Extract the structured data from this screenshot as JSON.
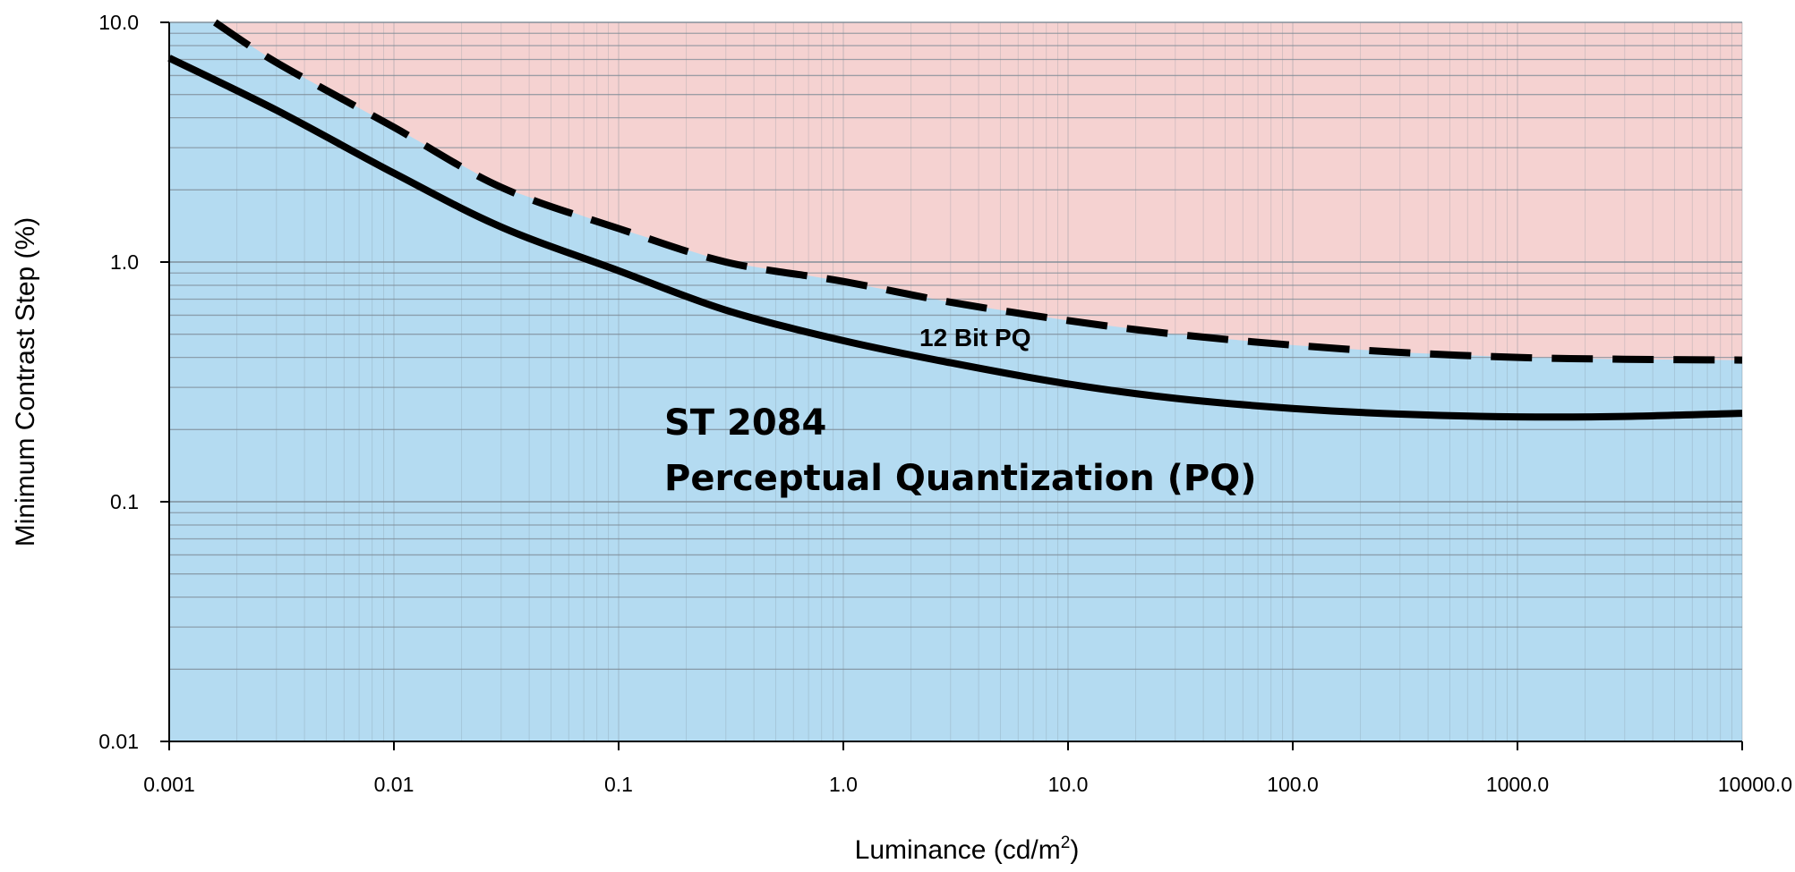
{
  "chart_data": {
    "type": "line",
    "xlabel": "Luminance (cd/m",
    "xlabel_sup": "2",
    "xlabel_close": ")",
    "ylabel": "Minimum Contrast Step (%)",
    "xscale": "log",
    "yscale": "log",
    "xlim": [
      0.001,
      10000
    ],
    "ylim": [
      0.01,
      10
    ],
    "grid": true,
    "x_ticks": [
      {
        "value": 0.001,
        "label": "0.001"
      },
      {
        "value": 0.01,
        "label": "0.01"
      },
      {
        "value": 0.1,
        "label": "0.1"
      },
      {
        "value": 1,
        "label": "1.0"
      },
      {
        "value": 10,
        "label": "10.0"
      },
      {
        "value": 100,
        "label": "100.0"
      },
      {
        "value": 1000,
        "label": "1000.0"
      },
      {
        "value": 10000,
        "label": "10000.0"
      }
    ],
    "y_ticks": [
      {
        "value": 0.01,
        "label": "0.01"
      },
      {
        "value": 0.1,
        "label": "0.1"
      },
      {
        "value": 1,
        "label": "1.0"
      },
      {
        "value": 10,
        "label": "10.0"
      }
    ],
    "region_colors": {
      "above": "#f5d2d1",
      "below": "#b4dbf1",
      "grid": "#7d8b96"
    },
    "series": [
      {
        "name": "12 Bit PQ",
        "style": "dashed",
        "color": "#000000",
        "points": [
          [
            0.0016,
            10.0
          ],
          [
            0.003,
            6.8
          ],
          [
            0.01,
            3.65
          ],
          [
            0.03,
            2.05
          ],
          [
            0.1,
            1.38
          ],
          [
            0.3,
            1.0
          ],
          [
            1,
            0.83
          ],
          [
            3,
            0.68
          ],
          [
            10,
            0.57
          ],
          [
            30,
            0.5
          ],
          [
            100,
            0.45
          ],
          [
            300,
            0.42
          ],
          [
            1000,
            0.4
          ],
          [
            3000,
            0.393
          ],
          [
            10000,
            0.39
          ]
        ]
      },
      {
        "name": "ST 2084 Perceptual Quantization (PQ)",
        "style": "solid",
        "color": "#000000",
        "points": [
          [
            0.001,
            7.1
          ],
          [
            0.003,
            4.3
          ],
          [
            0.01,
            2.35
          ],
          [
            0.03,
            1.4
          ],
          [
            0.1,
            0.92
          ],
          [
            0.3,
            0.63
          ],
          [
            1,
            0.47
          ],
          [
            3,
            0.38
          ],
          [
            10,
            0.31
          ],
          [
            30,
            0.27
          ],
          [
            100,
            0.245
          ],
          [
            300,
            0.232
          ],
          [
            1000,
            0.226
          ],
          [
            3000,
            0.227
          ],
          [
            10000,
            0.234
          ]
        ]
      }
    ],
    "annotations": {
      "dashed_label": "12 Bit PQ",
      "solid_label_line1": "ST 2084",
      "solid_label_line2": "Perceptual Quantization (PQ)"
    }
  }
}
